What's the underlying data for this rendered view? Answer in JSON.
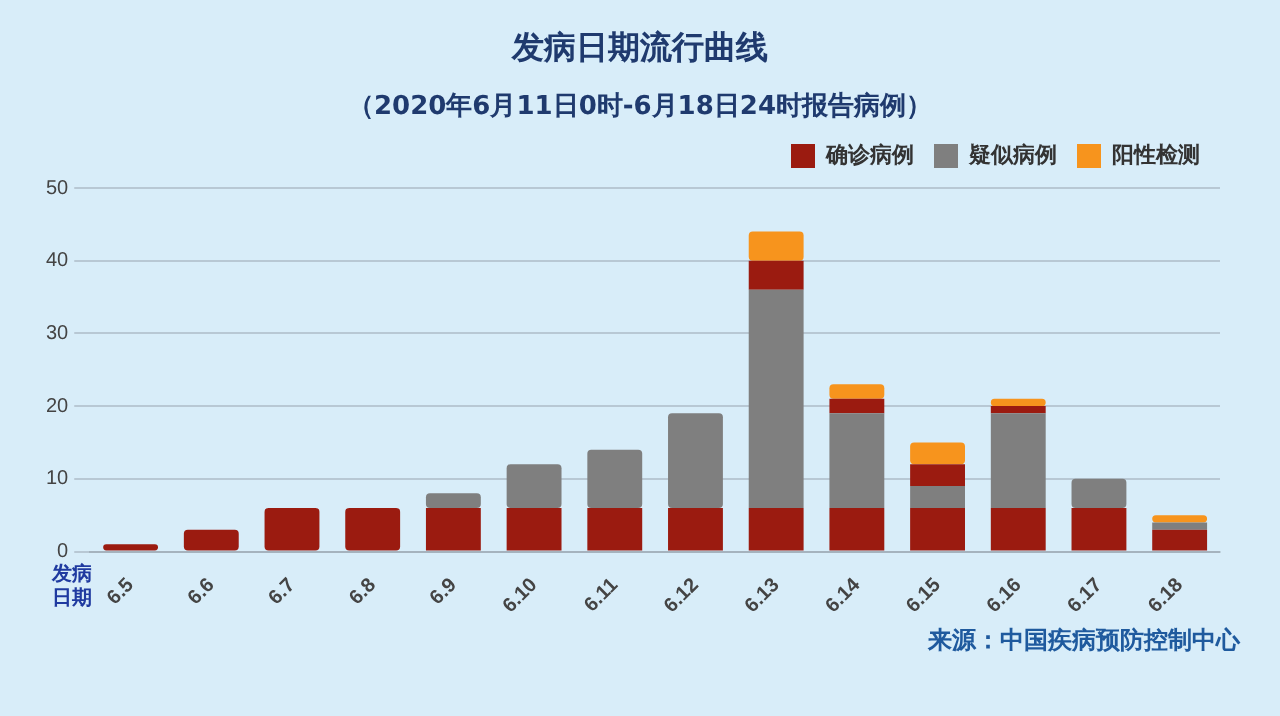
{
  "chart_data": {
    "type": "bar",
    "title": "发病日期流行曲线",
    "subtitle": "（2020年6月11日0时-6月18日24时报告病例）",
    "xlabel": "发病日期",
    "annotations": [
      "来源：中国疾病预防控制中心"
    ],
    "categories": [
      "6.5",
      "6.6",
      "6.7",
      "6.8",
      "6.9",
      "6.10",
      "6.11",
      "6.12",
      "6.13",
      "6.14",
      "6.15",
      "6.16",
      "6.17",
      "6.18"
    ],
    "stacked": true,
    "ylim": [
      0,
      50
    ],
    "yticks": [
      0,
      10,
      20,
      30,
      40,
      50
    ],
    "grid": "y",
    "legend": "top right",
    "series": [
      {
        "name": "确诊病例",
        "color": "#9b1b10",
        "values": [
          1,
          3,
          6,
          6,
          6,
          6,
          6,
          6,
          6,
          6,
          6,
          6,
          6,
          3
        ]
      },
      {
        "name": "疑似病例",
        "color": "#7f7f7f",
        "values": [
          null,
          null,
          null,
          null,
          2,
          6,
          8,
          13,
          30,
          13,
          3,
          13,
          4,
          1
        ]
      },
      {
        "color": "#9b1b10",
        "values": [
          null,
          null,
          null,
          null,
          null,
          null,
          null,
          null,
          4,
          2,
          3,
          1,
          null,
          null
        ]
      },
      {
        "name": "阳性检测",
        "color": "#f7941d",
        "values": [
          null,
          null,
          null,
          null,
          null,
          null,
          null,
          null,
          4,
          2,
          3,
          1,
          null,
          1
        ]
      }
    ]
  }
}
